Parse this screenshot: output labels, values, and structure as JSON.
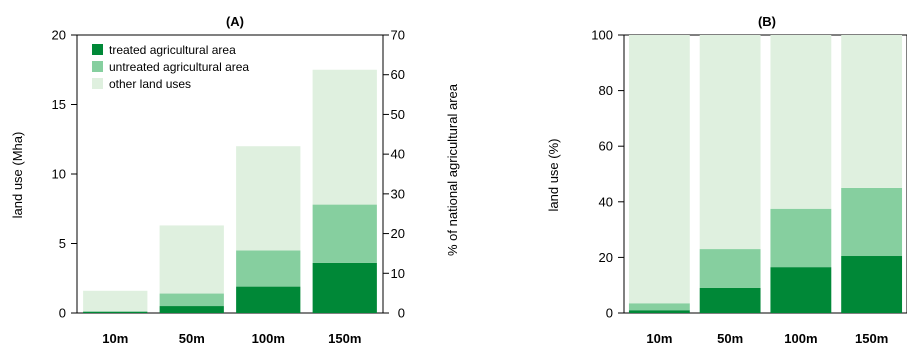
{
  "colors": {
    "treated": "#008837",
    "untreated": "#86cf9f",
    "other": "#dff0df"
  },
  "chart_data": [
    {
      "type": "bar",
      "stacked": true,
      "title": "(A)",
      "categories": [
        "10m",
        "50m",
        "100m",
        "150m"
      ],
      "ylabel": "land use (Mha)",
      "ylim": [
        0,
        20
      ],
      "yticks": [
        "0",
        "5",
        "10",
        "15",
        "20"
      ],
      "secondary_axis": {
        "label": "% of national agricultural area",
        "lim": [
          0,
          70
        ],
        "ticks": [
          "0",
          "10",
          "20",
          "30",
          "40",
          "50",
          "60",
          "70"
        ]
      },
      "series": [
        {
          "name": "treated agricultural area",
          "values": [
            0.1,
            0.5,
            1.9,
            3.6
          ]
        },
        {
          "name": "untreated agricultural area",
          "values": [
            0.0,
            0.9,
            2.6,
            4.2
          ]
        },
        {
          "name": "other land uses",
          "values": [
            1.5,
            4.9,
            7.5,
            9.7
          ]
        }
      ],
      "legend": "top-left",
      "grid": false
    },
    {
      "type": "bar",
      "stacked": true,
      "title": "(B)",
      "categories": [
        "10m",
        "50m",
        "100m",
        "150m"
      ],
      "ylabel": "land use (%)",
      "ylim": [
        0,
        100
      ],
      "yticks": [
        "0",
        "20",
        "40",
        "60",
        "80",
        "100"
      ],
      "series": [
        {
          "name": "treated agricultural area",
          "values": [
            1,
            9,
            16.5,
            20.5
          ]
        },
        {
          "name": "untreated agricultural area",
          "values": [
            2.5,
            14,
            21,
            24.5
          ]
        },
        {
          "name": "other land uses",
          "values": [
            96.5,
            77,
            62.5,
            55
          ]
        }
      ],
      "grid": false
    }
  ]
}
